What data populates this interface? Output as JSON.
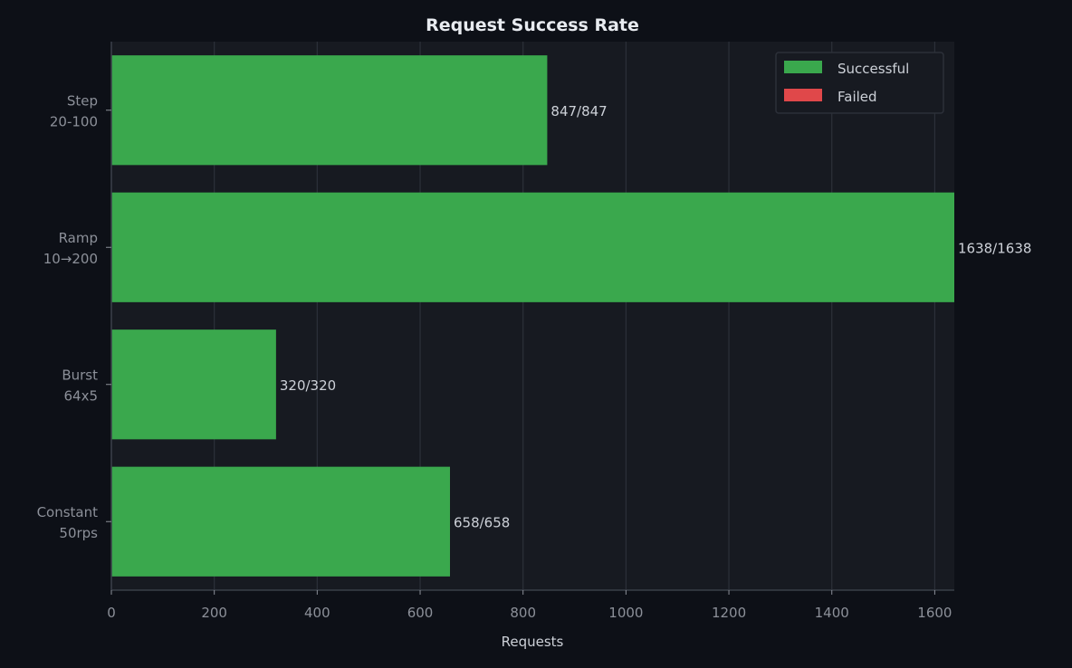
{
  "chart_data": {
    "type": "bar",
    "orientation": "horizontal",
    "stacked": true,
    "title": "Request Success Rate",
    "xlabel": "Requests",
    "ylabel": "",
    "xlim": [
      0,
      1638
    ],
    "x_ticks": [
      0,
      200,
      400,
      600,
      800,
      1000,
      1200,
      1400,
      1600
    ],
    "categories": [
      "Step\n20-100",
      "Ramp\n10→200",
      "Burst\n64x5",
      "Constant\n50rps"
    ],
    "series": [
      {
        "name": "Successful",
        "color": "#3aa84d",
        "values": [
          847,
          1638,
          320,
          658
        ]
      },
      {
        "name": "Failed",
        "color": "#e0484a",
        "values": [
          0,
          0,
          0,
          0
        ]
      }
    ],
    "data_labels": [
      "847/847",
      "1638/1638",
      "320/320",
      "658/658"
    ],
    "grid": {
      "x": true,
      "y": false
    },
    "legend_position": "top-right"
  },
  "colors": {
    "page_background": "#0d1017",
    "plot_background": "#171a21",
    "grid": "#2c3039",
    "axis": "#3a3f49",
    "title_text": "#e8ebf0",
    "label_text": "#cdd1d8",
    "tick_text": "#8c9099"
  }
}
